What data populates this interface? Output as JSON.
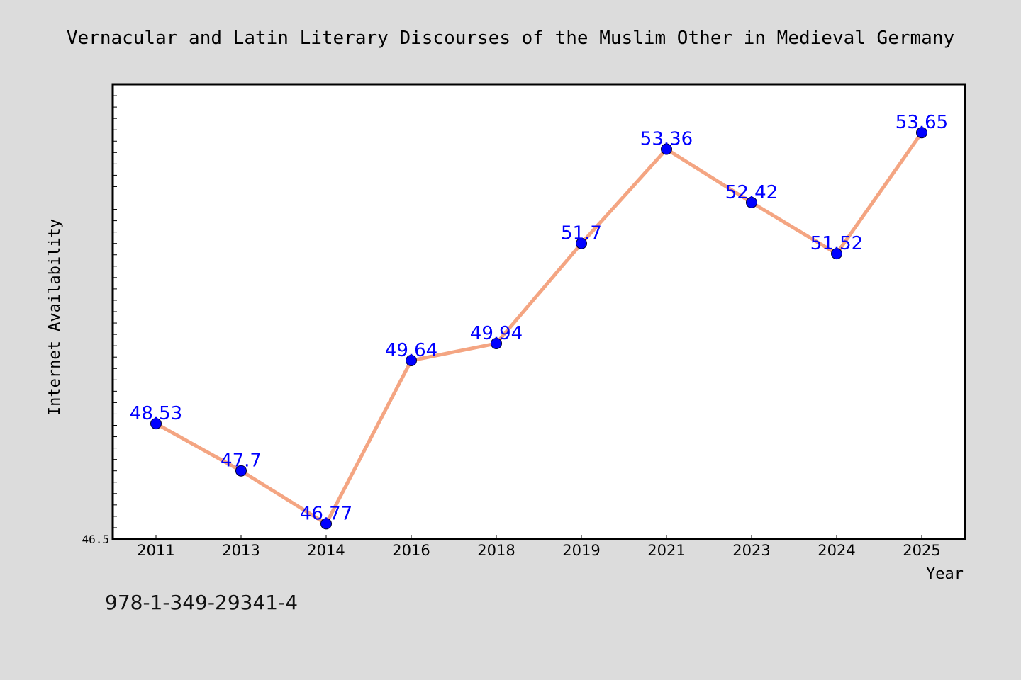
{
  "chart_data": {
    "type": "line",
    "title": "Vernacular and Latin Literary Discourses of the Muslim Other in Medieval Germany",
    "xlabel": "Year",
    "ylabel": "Internet Availability",
    "categories": [
      "2011",
      "2013",
      "2014",
      "2016",
      "2018",
      "2019",
      "2021",
      "2023",
      "2024",
      "2025"
    ],
    "series": [
      {
        "values": [
          48.53,
          47.7,
          46.77,
          49.64,
          49.94,
          51.7,
          53.36,
          52.42,
          51.52,
          53.65
        ],
        "labels": [
          "48.53",
          "47.7",
          "46.77",
          "49.64",
          "49.94",
          "51.7",
          "53.36",
          "52.42",
          "51.52",
          "53.65"
        ]
      }
    ],
    "ylim": [
      46.5,
      54.5
    ],
    "yticks": [
      "46.5"
    ],
    "grid": false,
    "colors": {
      "line": "#f4a582",
      "marker": "#0000ff",
      "data_label": "#0000ff",
      "background": "#dcdcdc",
      "plot_background": "#ffffff"
    }
  },
  "footer": {
    "isbn": "978-1-349-29341-4"
  }
}
